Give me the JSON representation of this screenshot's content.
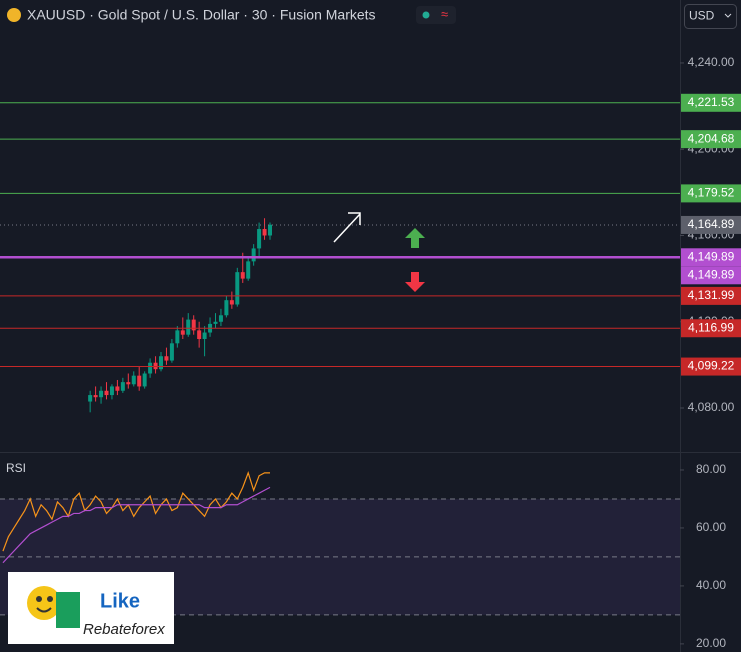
{
  "header": {
    "title": "XAUUSD · Gold Spot / U.S. Dollar · 30 · Fusion Markets",
    "badge": "≈",
    "currency": "USD"
  },
  "logo": {
    "word": "Like",
    "brand": "Rebateforex"
  },
  "chart_data": [
    {
      "type": "candlestick",
      "ylim": [
        4059.6,
        4269.2
      ],
      "yticks": [
        {
          "value": 4240,
          "label": "4,240.00"
        },
        {
          "value": 4200,
          "label": "4,200.00"
        },
        {
          "value": 4160,
          "label": "4,160.00"
        },
        {
          "value": 4120,
          "label": "4,120.00"
        },
        {
          "value": 4080,
          "label": "4,080.00"
        }
      ],
      "up_color": "#089981",
      "down_color": "#f23645",
      "open": [
        4083,
        4086,
        4085,
        4088,
        4086,
        4090,
        4088,
        4092,
        4091,
        4095,
        4090,
        4096,
        4101,
        4098,
        4104,
        4102,
        4110,
        4116,
        4114,
        4121,
        4116,
        4112,
        4115,
        4119,
        4120,
        4123,
        4130,
        4128,
        4143,
        4140,
        4148,
        4154,
        4163,
        4160
      ],
      "high": [
        4088,
        4090,
        4090,
        4092,
        4091,
        4093,
        4094,
        4096,
        4097,
        4099,
        4097,
        4103,
        4104,
        4106,
        4108,
        4112,
        4118,
        4122,
        4124,
        4123,
        4120,
        4118,
        4122,
        4124,
        4126,
        4132,
        4134,
        4145,
        4152,
        4150,
        4156,
        4166,
        4168,
        4166
      ],
      "low": [
        4078,
        4083,
        4082,
        4084,
        4084,
        4086,
        4087,
        4089,
        4090,
        4088,
        4089,
        4094,
        4096,
        4097,
        4100,
        4101,
        4108,
        4112,
        4113,
        4114,
        4108,
        4104,
        4113,
        4117,
        4118,
        4122,
        4126,
        4127,
        4138,
        4139,
        4146,
        4150,
        4158,
        4158
      ],
      "close": [
        4086,
        4085,
        4088,
        4086,
        4090,
        4088,
        4092,
        4091,
        4095,
        4090,
        4096,
        4101,
        4098,
        4104,
        4102,
        4110,
        4116,
        4114,
        4121,
        4116,
        4112,
        4115,
        4119,
        4120,
        4123,
        4130,
        4128,
        4143,
        4140,
        4148,
        4154,
        4163,
        4160,
        4165
      ],
      "last_price": 4164.89,
      "last_price_label": "4,164.89",
      "levels": [
        {
          "value": 4221.53,
          "label": "4,221.53",
          "color": "#4caf50"
        },
        {
          "value": 4204.68,
          "label": "4,204.68",
          "color": "#4caf50"
        },
        {
          "value": 4179.52,
          "label": "4,179.52",
          "color": "#4caf50"
        },
        {
          "value": 4149.89,
          "label": "4,149.89",
          "color": "#b24fd0"
        },
        {
          "value": 4149.89,
          "label": "4,149.89",
          "color": "#b24fd0"
        },
        {
          "value": 4131.99,
          "label": "4,131.99",
          "color": "#c62828"
        },
        {
          "value": 4116.99,
          "label": "4,116.99",
          "color": "#c62828"
        },
        {
          "value": 4099.22,
          "label": "4,099.22",
          "color": "#c62828"
        }
      ]
    },
    {
      "type": "line",
      "title": "RSI",
      "ylim": [
        17.2,
        86.2
      ],
      "yticks": [
        {
          "value": 80,
          "label": "80.00"
        },
        {
          "value": 60,
          "label": "60.00"
        },
        {
          "value": 40,
          "label": "40.00"
        },
        {
          "value": 20,
          "label": "20.00"
        }
      ],
      "levels": [
        70,
        50,
        30
      ],
      "series": [
        {
          "name": "RSI",
          "color": "#f7931a",
          "values": [
            52,
            57,
            60,
            63,
            66,
            70,
            64,
            68,
            66,
            63,
            69,
            67,
            64,
            70,
            72,
            66,
            68,
            71,
            69,
            65,
            67,
            70,
            66,
            68,
            64,
            67,
            69,
            71,
            65,
            68,
            70,
            66,
            67,
            72,
            70,
            68,
            66,
            64,
            68,
            70,
            67,
            69,
            72,
            70,
            74,
            79,
            73,
            78,
            79,
            79
          ]
        },
        {
          "name": "RSI MA",
          "color": "#b24fd0",
          "values": [
            48,
            50,
            52,
            54,
            56,
            58,
            59,
            60,
            61,
            62,
            63,
            64,
            64,
            65,
            65,
            66,
            66,
            67,
            67,
            67,
            67,
            68,
            68,
            68,
            68,
            68,
            68,
            68,
            68,
            68,
            68,
            68,
            68,
            68,
            68,
            68,
            68,
            67,
            67,
            67,
            67,
            68,
            68,
            68,
            69,
            70,
            71,
            72,
            73,
            74
          ]
        }
      ]
    }
  ]
}
